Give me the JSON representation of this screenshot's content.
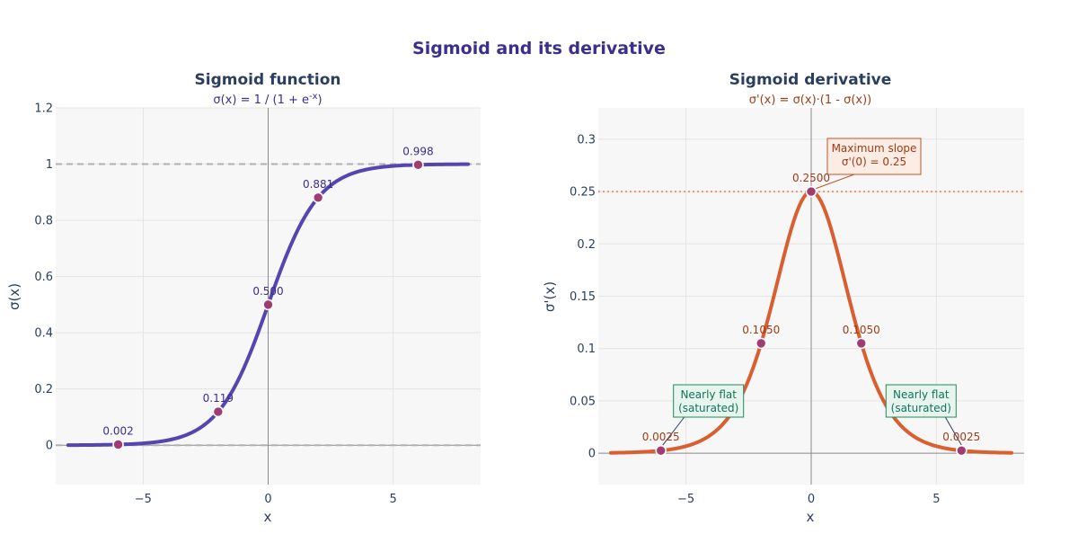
{
  "title": "Sigmoid and its derivative",
  "colors": {
    "sigmoid_line": "#5445b0",
    "derivative_line": "#d95f30",
    "marker": "#a23b72",
    "sigmoid_label": "#3b2e8c",
    "derivative_label": "#a33a14",
    "max_annotation_bg": "#fbece4",
    "max_annotation_border": "#c0532a",
    "flat_annotation_bg": "#e8f5ee",
    "flat_annotation_border": "#1f8a5b",
    "flat_annotation_text": "#11735a",
    "plot_bg": "#f7f7f7",
    "grid": "#e4e4e4"
  },
  "chart_data": [
    {
      "type": "line",
      "title": "Sigmoid function",
      "subtitle_prefix": "σ(x) = 1 / (1 + e",
      "subtitle_exponent": "-x",
      "subtitle_suffix": ")",
      "xlabel": "x",
      "ylabel": "σ(x)",
      "xlim": [
        -8.5,
        8.5
      ],
      "ylim": [
        -0.14,
        1.2
      ],
      "xticks": [
        -5,
        0,
        5
      ],
      "xtick_labels": [
        "−5",
        "0",
        "5"
      ],
      "yticks": [
        0,
        0.2,
        0.4,
        0.6,
        0.8,
        1,
        1.2
      ],
      "ytick_labels": [
        "0",
        "0.2",
        "0.4",
        "0.6",
        "0.8",
        "1",
        "1.2"
      ],
      "x_range": [
        -8,
        8
      ],
      "function": "sigmoid",
      "reference_lines": [
        {
          "y": 1,
          "style": "dashed"
        },
        {
          "y": 0,
          "style": "dashed"
        }
      ],
      "points": [
        {
          "x": -6,
          "y": 0.0025,
          "label": "0.002"
        },
        {
          "x": -2,
          "y": 0.1192,
          "label": "0.119"
        },
        {
          "x": 0,
          "y": 0.5,
          "label": "0.500"
        },
        {
          "x": 2,
          "y": 0.8808,
          "label": "0.881"
        },
        {
          "x": 6,
          "y": 0.9975,
          "label": "0.998"
        }
      ]
    },
    {
      "type": "line",
      "title": "Sigmoid derivative",
      "subtitle": "σ'(x) = σ(x)·(1 - σ(x))",
      "xlabel": "x",
      "ylabel": "σ'(x)",
      "xlim": [
        -8.5,
        8.5
      ],
      "ylim": [
        -0.03,
        0.33
      ],
      "xticks": [
        -5,
        0,
        5
      ],
      "xtick_labels": [
        "−5",
        "0",
        "5"
      ],
      "yticks": [
        0,
        0.05,
        0.1,
        0.15,
        0.2,
        0.25,
        0.3
      ],
      "ytick_labels": [
        "0",
        "0.05",
        "0.1",
        "0.15",
        "0.2",
        "0.25",
        "0.3"
      ],
      "x_range": [
        -8,
        8
      ],
      "function": "sigmoid_derivative",
      "reference_lines": [
        {
          "y": 0.25,
          "style": "dotted"
        }
      ],
      "points": [
        {
          "x": -6,
          "y": 0.0025,
          "label": "0.0025"
        },
        {
          "x": -2,
          "y": 0.105,
          "label": "0.1050"
        },
        {
          "x": 0,
          "y": 0.25,
          "label": "0.2500"
        },
        {
          "x": 2,
          "y": 0.105,
          "label": "0.1050"
        },
        {
          "x": 6,
          "y": 0.0025,
          "label": "0.0025"
        }
      ],
      "annotations": [
        {
          "kind": "max",
          "x": 0,
          "y": 0.25,
          "lines": [
            "Maximum slope",
            "σ'(0) = 0.25"
          ]
        },
        {
          "kind": "flat",
          "x": -6,
          "y": 0.0025,
          "lines": [
            "Nearly flat",
            "(saturated)"
          ]
        },
        {
          "kind": "flat",
          "x": 6,
          "y": 0.0025,
          "lines": [
            "Nearly flat",
            "(saturated)"
          ]
        }
      ]
    }
  ]
}
